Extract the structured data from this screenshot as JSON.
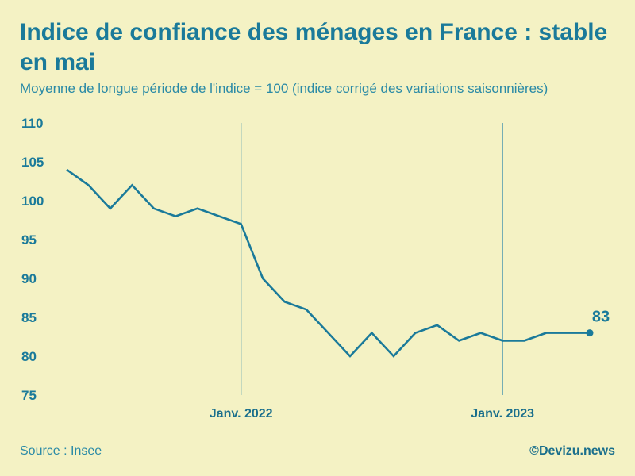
{
  "header": {
    "title": "Indice de confiance des ménages en France : stable en mai",
    "subtitle": "Moyenne de longue période de l'indice = 100 (indice corrigé des variations saisonnières)"
  },
  "footer": {
    "source": "Source : Insee",
    "credit": "©Devizu.news"
  },
  "colors": {
    "background": "#f4f2c4",
    "line": "#1a7a9a",
    "text": "#1a7a9a"
  },
  "chart_data": {
    "type": "line",
    "title": "Indice de confiance des ménages en France : stable en mai",
    "xlabel": "",
    "ylabel": "",
    "ylim": [
      75,
      110
    ],
    "yticks": [
      110,
      105,
      100,
      95,
      90,
      85,
      80,
      75
    ],
    "x": [
      "2021-05",
      "2021-06",
      "2021-07",
      "2021-08",
      "2021-09",
      "2021-10",
      "2021-11",
      "2021-12",
      "2022-01",
      "2022-02",
      "2022-03",
      "2022-04",
      "2022-05",
      "2022-06",
      "2022-07",
      "2022-08",
      "2022-09",
      "2022-10",
      "2022-11",
      "2022-12",
      "2023-01",
      "2023-02",
      "2023-03",
      "2023-04",
      "2023-05"
    ],
    "series": [
      {
        "name": "Indice de confiance des ménages",
        "values": [
          104,
          102,
          99,
          102,
          99,
          98,
          99,
          98,
          97,
          90,
          87,
          86,
          83,
          80,
          83,
          80,
          83,
          84,
          82,
          83,
          82,
          82,
          83,
          83,
          83
        ]
      }
    ],
    "vlines": [
      {
        "x": "2022-01",
        "label": "Janv. 2022"
      },
      {
        "x": "2023-01",
        "label": "Janv. 2023"
      }
    ],
    "last_value_label": "83"
  }
}
